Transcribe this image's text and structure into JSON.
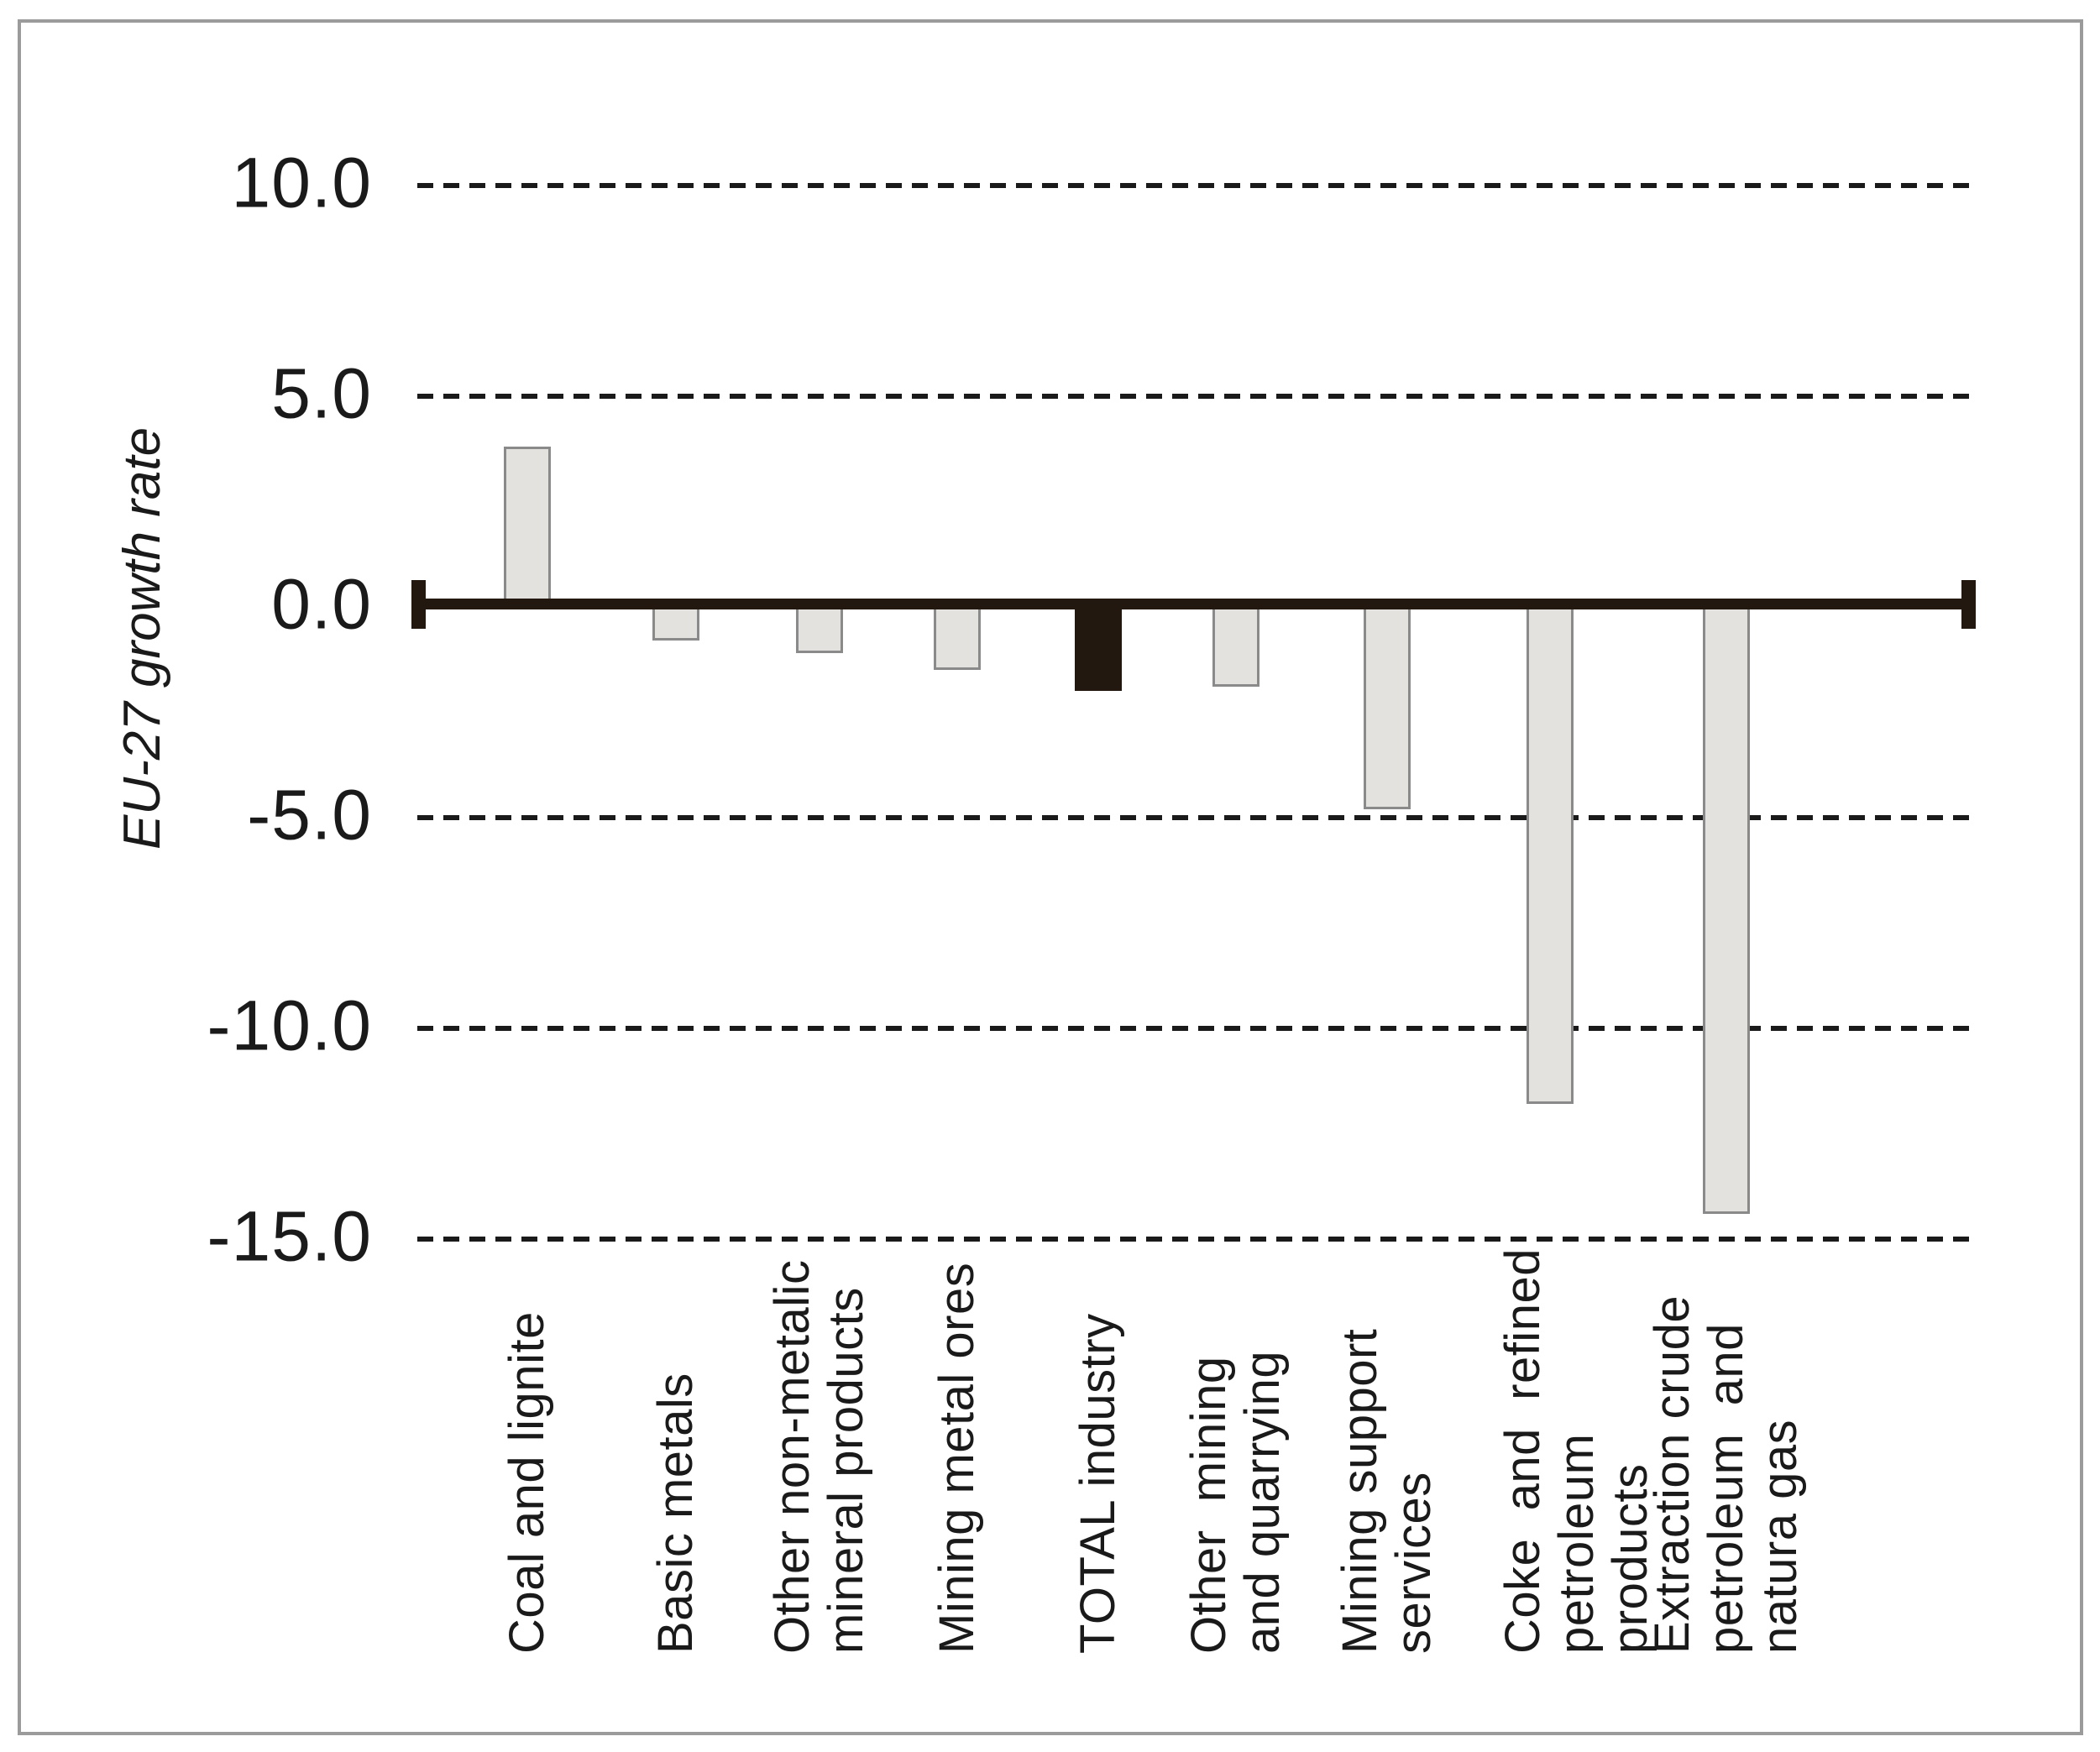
{
  "figure": {
    "background": "#ffffff",
    "border_color": "#9b9b9b"
  },
  "chart_data": {
    "type": "bar",
    "title": "",
    "xlabel": "",
    "ylabel": "EU-27 growth rate",
    "ylim": [
      -15.0,
      10.0
    ],
    "grid": "horizontal-dashed",
    "legend_position": "none",
    "yticks": [
      10.0,
      5.0,
      0.0,
      -5.0,
      -10.0,
      -15.0
    ],
    "ytick_labels": [
      "10.0",
      "5.0",
      "0.0",
      "-5.0",
      "-10.0",
      "-15.0"
    ],
    "categories": [
      "Coal and lignite",
      "Basic metals",
      "Other non-metalic mineral products",
      "Mining metal ores",
      "TOTAL industry",
      "Other mining and quarrying",
      "Mining support services",
      "Coke and refined petroleum products",
      "Extraction crude petroleum and natura gas"
    ],
    "category_display_lines": [
      [
        "Coal and lignite"
      ],
      [
        "Basic metals"
      ],
      [
        "Other non-metalic",
        "mineral products"
      ],
      [
        "Mining metal ores"
      ],
      [
        "TOTAL industry"
      ],
      [
        "Other  mining",
        "and quarrying"
      ],
      [
        "Mining support",
        "services"
      ],
      [
        "Coke  and  refined",
        "petroleum products"
      ],
      [
        "Extraction crude",
        "petroleum  and",
        "natura gas"
      ]
    ],
    "values": [
      3.8,
      -0.8,
      -1.1,
      -1.5,
      -2.0,
      -1.9,
      -4.8,
      -11.8,
      -14.4
    ],
    "highlight_index": 4,
    "highlight_meaning": "TOTAL industry bar drawn in black",
    "colors": {
      "bar_fill": "#e4e2df",
      "bar_border": "#8a8a8a",
      "highlight_fill": "#231810",
      "axis_line": "#231810",
      "gridline": "#1a1a1a",
      "text": "#1a1a1a"
    }
  }
}
